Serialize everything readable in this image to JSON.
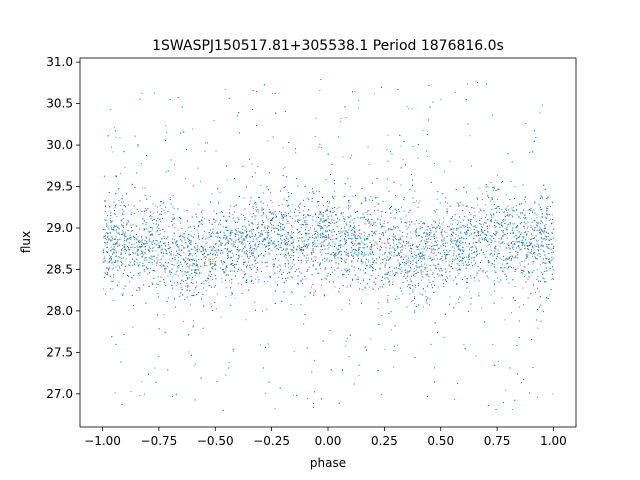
{
  "chart_data": {
    "type": "scatter",
    "title": "1SWASPJ150517.81+305538.1 Period 1876816.0s",
    "xlabel": "phase",
    "ylabel": "flux",
    "xlim": [
      -1.1,
      1.1
    ],
    "ylim": [
      26.6,
      31.05
    ],
    "xticks": [
      -1.0,
      -0.75,
      -0.5,
      -0.25,
      0.0,
      0.25,
      0.5,
      0.75,
      1.0
    ],
    "xtick_labels": [
      "−1.00",
      "−0.75",
      "−0.50",
      "−0.25",
      "0.00",
      "0.25",
      "0.50",
      "0.75",
      "1.00"
    ],
    "yticks": [
      27.0,
      27.5,
      28.0,
      28.5,
      29.0,
      29.5,
      30.0,
      30.5,
      31.0
    ],
    "ytick_labels": [
      "27.0",
      "27.5",
      "28.0",
      "28.5",
      "29.0",
      "29.5",
      "30.0",
      "30.5",
      "31.0"
    ],
    "grid": false,
    "marker_color": "#1f77b4",
    "series": [
      {
        "x_range": [
          -1.0,
          1.0
        ],
        "y_center": 28.8,
        "y_core_range": [
          28.1,
          29.6
        ],
        "y_outlier_range": [
          26.8,
          30.8
        ],
        "profile": [
          {
            "phase": -1.0,
            "center": 28.85
          },
          {
            "phase": -0.75,
            "center": 28.8
          },
          {
            "phase": -0.6,
            "center": 28.65
          },
          {
            "phase": -0.5,
            "center": 28.7
          },
          {
            "phase": -0.3,
            "center": 28.9
          },
          {
            "phase": -0.15,
            "center": 28.85
          },
          {
            "phase": 0.0,
            "center": 28.85
          },
          {
            "phase": 0.25,
            "center": 28.8
          },
          {
            "phase": 0.4,
            "center": 28.65
          },
          {
            "phase": 0.5,
            "center": 28.7
          },
          {
            "phase": 0.7,
            "center": 28.9
          },
          {
            "phase": 0.85,
            "center": 28.85
          },
          {
            "phase": 1.0,
            "center": 28.85
          }
        ]
      }
    ]
  }
}
